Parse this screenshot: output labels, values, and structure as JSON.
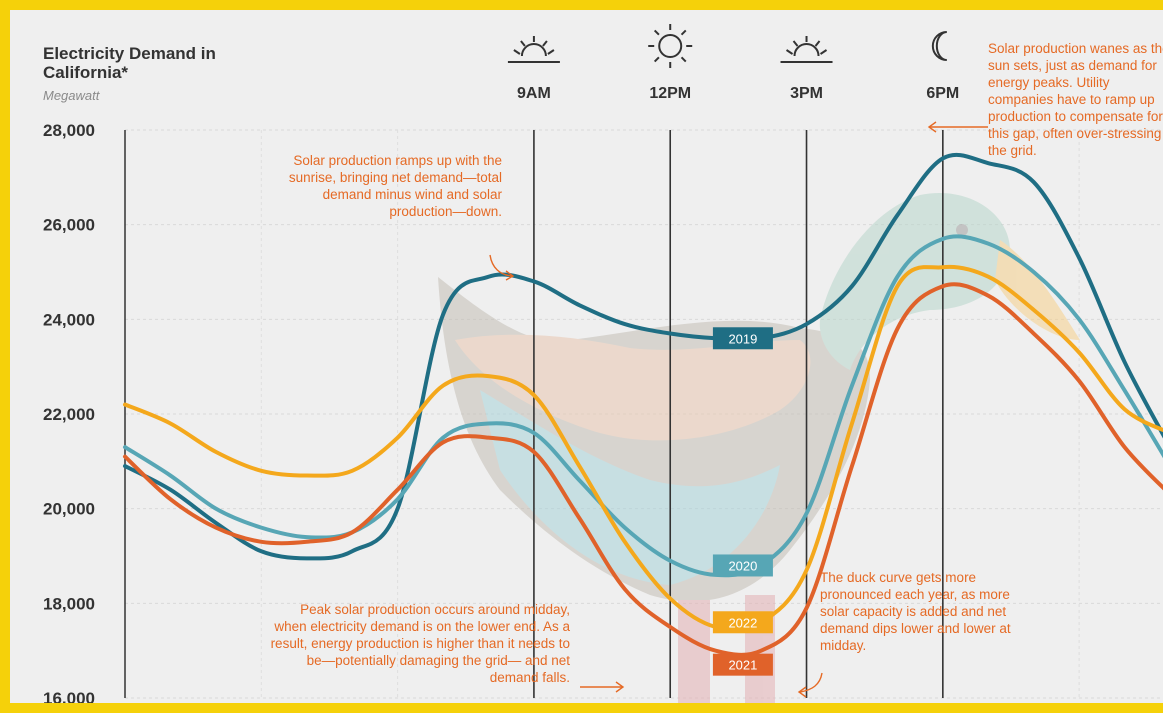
{
  "header": {
    "title": "Electricity Demand in California*",
    "units": "Megawatt"
  },
  "colors": {
    "y2019": "#1f6e84",
    "y2020": "#57a6b5",
    "y2021": "#e0622a",
    "y2022": "#f4a81c",
    "annotation": "#e56a25",
    "frame": "#f5d10a"
  },
  "annotations": {
    "morning": "Solar production ramps up with the sunrise, bringing net demand—total demand minus wind and solar production—down.",
    "evening": "Solar production wanes as the sun sets, just as demand for energy peaks. Utility companies have to ramp up production to compensate for this gap, often over-stressing the grid.",
    "midday": "Peak solar production occurs around midday, when electricity demand is on the lower end. As a result, energy production is higher than it needs to be—potentially damaging the grid— and net demand falls.",
    "duck": "The duck curve gets more pronounced each year, as more solar capacity is added and net demand dips lower and lower at midday."
  },
  "chart_data": {
    "type": "line",
    "title": "Electricity Demand in California*",
    "ylabel": "Megawatt",
    "ylim": [
      16000,
      28000
    ],
    "yticks": [
      "16,000",
      "18,000",
      "20,000",
      "22,000",
      "24,000",
      "26,000",
      "28,000"
    ],
    "time_markers": [
      {
        "label": "9AM",
        "icon": "sunrise-icon",
        "hour": 9
      },
      {
        "label": "12PM",
        "icon": "sun-icon",
        "hour": 12
      },
      {
        "label": "3PM",
        "icon": "sunset-icon",
        "hour": 15
      },
      {
        "label": "6PM",
        "icon": "moon-icon",
        "hour": 18
      }
    ],
    "x": [
      0,
      1,
      2,
      3,
      4,
      5,
      6,
      7,
      8,
      9,
      10,
      11,
      12,
      13,
      14,
      15,
      16,
      17,
      18,
      19,
      20,
      21,
      22,
      23
    ],
    "series": [
      {
        "name": "2019",
        "colorKey": "y2019",
        "values": [
          20900,
          20400,
          19700,
          19100,
          18950,
          19100,
          20000,
          24100,
          24900,
          24800,
          24300,
          23900,
          23700,
          23600,
          23600,
          23900,
          24700,
          26200,
          27400,
          27300,
          26900,
          25300,
          23100,
          21300
        ]
      },
      {
        "name": "2020",
        "colorKey": "y2020",
        "values": [
          21300,
          20700,
          20000,
          19600,
          19400,
          19500,
          20200,
          21500,
          21800,
          21600,
          20600,
          19600,
          18900,
          18600,
          18800,
          19900,
          22600,
          24900,
          25700,
          25600,
          25000,
          24000,
          22500,
          20900
        ]
      },
      {
        "name": "2021",
        "colorKey": "y2021",
        "values": [
          21100,
          20200,
          19600,
          19300,
          19300,
          19500,
          20400,
          21400,
          21500,
          21200,
          19800,
          18300,
          17500,
          17000,
          17000,
          17900,
          20900,
          23800,
          24700,
          24500,
          23700,
          22700,
          21300,
          20300
        ]
      },
      {
        "name": "2022",
        "colorKey": "y2022",
        "values": [
          22200,
          21800,
          21200,
          20800,
          20700,
          20800,
          21500,
          22600,
          22800,
          22400,
          20900,
          19300,
          18100,
          17500,
          17600,
          18700,
          21800,
          24700,
          25100,
          24900,
          24200,
          23300,
          22100,
          21600
        ]
      }
    ]
  }
}
